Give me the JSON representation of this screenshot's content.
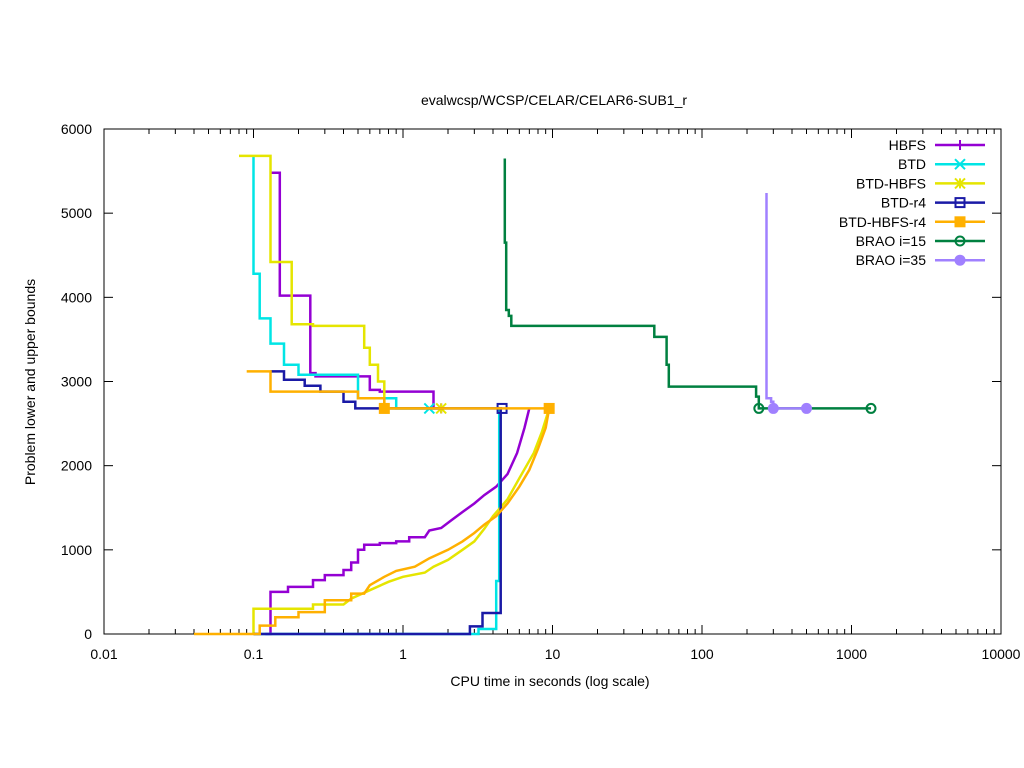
{
  "chart_data": {
    "type": "line",
    "title": "evalwcsp/WCSP/CELAR/CELAR6-SUB1_r",
    "xlabel": "CPU time in seconds (log scale)",
    "ylabel": "Problem lower and upper bounds",
    "xscale": "log",
    "xlim": [
      0.01,
      10000
    ],
    "ylim": [
      0,
      6000
    ],
    "x_ticks": [
      0.01,
      0.1,
      1,
      10,
      100,
      1000,
      10000
    ],
    "x_tick_labels": [
      "0.01",
      "0.1",
      "1",
      "10",
      "100",
      "1000",
      "10000"
    ],
    "y_ticks": [
      0,
      1000,
      2000,
      3000,
      4000,
      5000,
      6000
    ],
    "y_tick_labels": [
      "0",
      "1000",
      "2000",
      "3000",
      "4000",
      "5000",
      "6000"
    ],
    "grid": false,
    "legend_position": "top-right",
    "series": [
      {
        "name": "HBFS",
        "color": "#9400d3",
        "marker": "plus",
        "upper": [
          [
            0.13,
            5480
          ],
          [
            0.15,
            5480
          ],
          [
            0.15,
            4020
          ],
          [
            0.24,
            4020
          ],
          [
            0.24,
            3100
          ],
          [
            0.26,
            3100
          ],
          [
            0.26,
            3060
          ],
          [
            0.6,
            3060
          ],
          [
            0.6,
            2900
          ],
          [
            0.7,
            2900
          ],
          [
            0.7,
            2880
          ],
          [
            1.6,
            2880
          ],
          [
            1.6,
            2680
          ],
          [
            1.8,
            2680
          ]
        ],
        "lower": [
          [
            0.12,
            0
          ],
          [
            0.13,
            0
          ],
          [
            0.13,
            500
          ],
          [
            0.17,
            500
          ],
          [
            0.17,
            560
          ],
          [
            0.25,
            560
          ],
          [
            0.25,
            640
          ],
          [
            0.3,
            640
          ],
          [
            0.3,
            700
          ],
          [
            0.4,
            700
          ],
          [
            0.4,
            760
          ],
          [
            0.45,
            760
          ],
          [
            0.45,
            850
          ],
          [
            0.5,
            850
          ],
          [
            0.5,
            1000
          ],
          [
            0.55,
            1000
          ],
          [
            0.55,
            1060
          ],
          [
            0.7,
            1060
          ],
          [
            0.7,
            1080
          ],
          [
            0.9,
            1080
          ],
          [
            0.9,
            1100
          ],
          [
            1.1,
            1100
          ],
          [
            1.1,
            1150
          ],
          [
            1.4,
            1150
          ],
          [
            1.5,
            1230
          ],
          [
            1.8,
            1260
          ],
          [
            2.1,
            1350
          ],
          [
            2.5,
            1450
          ],
          [
            3,
            1550
          ],
          [
            3.5,
            1650
          ],
          [
            4.2,
            1750
          ],
          [
            5,
            1900
          ],
          [
            5.8,
            2150
          ],
          [
            6.5,
            2450
          ],
          [
            7,
            2680
          ]
        ],
        "markers": [
          [
            1.8,
            2680
          ]
        ]
      },
      {
        "name": "BTD",
        "color": "#00e5e5",
        "marker": "x",
        "upper": [
          [
            0.1,
            5680
          ],
          [
            0.1,
            4280
          ],
          [
            0.11,
            4280
          ],
          [
            0.11,
            3750
          ],
          [
            0.13,
            3750
          ],
          [
            0.13,
            3450
          ],
          [
            0.16,
            3450
          ],
          [
            0.16,
            3200
          ],
          [
            0.2,
            3200
          ],
          [
            0.2,
            3080
          ],
          [
            0.5,
            3080
          ],
          [
            0.5,
            2800
          ],
          [
            0.9,
            2800
          ],
          [
            0.9,
            2680
          ],
          [
            1.5,
            2680
          ]
        ],
        "lower": [
          [
            0.1,
            0
          ],
          [
            3.2,
            0
          ],
          [
            3.2,
            60
          ],
          [
            4.2,
            60
          ],
          [
            4.2,
            630
          ],
          [
            4.4,
            630
          ],
          [
            4.4,
            2680
          ]
        ],
        "markers": [
          [
            1.5,
            2680
          ]
        ]
      },
      {
        "name": "BTD-HBFS",
        "color": "#e5e500",
        "marker": "star",
        "upper": [
          [
            0.08,
            5680
          ],
          [
            0.13,
            5680
          ],
          [
            0.13,
            4420
          ],
          [
            0.18,
            4420
          ],
          [
            0.18,
            3680
          ],
          [
            0.25,
            3680
          ],
          [
            0.25,
            3660
          ],
          [
            0.55,
            3660
          ],
          [
            0.55,
            3400
          ],
          [
            0.6,
            3400
          ],
          [
            0.6,
            3200
          ],
          [
            0.68,
            3200
          ],
          [
            0.68,
            3000
          ],
          [
            0.75,
            3000
          ],
          [
            0.75,
            2680
          ],
          [
            1.8,
            2680
          ]
        ],
        "lower": [
          [
            0.1,
            0
          ],
          [
            0.1,
            300
          ],
          [
            0.25,
            300
          ],
          [
            0.25,
            350
          ],
          [
            0.4,
            350
          ],
          [
            0.45,
            420
          ],
          [
            0.6,
            520
          ],
          [
            0.8,
            620
          ],
          [
            1,
            680
          ],
          [
            1.4,
            730
          ],
          [
            1.6,
            800
          ],
          [
            2,
            880
          ],
          [
            2.5,
            1000
          ],
          [
            3,
            1100
          ],
          [
            3.5,
            1250
          ],
          [
            4,
            1400
          ],
          [
            5,
            1600
          ],
          [
            6,
            1850
          ],
          [
            7.5,
            2150
          ],
          [
            8.5,
            2400
          ],
          [
            9.5,
            2680
          ]
        ],
        "markers": [
          [
            1.8,
            2680
          ]
        ]
      },
      {
        "name": "BTD-r4",
        "color": "#1a1aa6",
        "marker": "square",
        "upper": [
          [
            0.13,
            3120
          ],
          [
            0.16,
            3120
          ],
          [
            0.16,
            3020
          ],
          [
            0.22,
            3020
          ],
          [
            0.22,
            2950
          ],
          [
            0.28,
            2950
          ],
          [
            0.28,
            2880
          ],
          [
            0.4,
            2880
          ],
          [
            0.4,
            2760
          ],
          [
            0.48,
            2760
          ],
          [
            0.48,
            2680
          ],
          [
            4.6,
            2680
          ]
        ],
        "lower": [
          [
            0.1,
            0
          ],
          [
            2.8,
            0
          ],
          [
            2.8,
            90
          ],
          [
            3.4,
            90
          ],
          [
            3.4,
            250
          ],
          [
            4.5,
            250
          ],
          [
            4.5,
            2680
          ],
          [
            4.6,
            2680
          ]
        ],
        "markers": [
          [
            4.6,
            2680
          ]
        ]
      },
      {
        "name": "BTD-HBFS-r4",
        "color": "#ffb000",
        "marker": "filled-square",
        "upper": [
          [
            0.09,
            3120
          ],
          [
            0.13,
            3120
          ],
          [
            0.13,
            2880
          ],
          [
            0.5,
            2880
          ],
          [
            0.5,
            2800
          ],
          [
            0.75,
            2800
          ],
          [
            0.75,
            2680
          ],
          [
            9.5,
            2680
          ]
        ],
        "lower": [
          [
            0.04,
            0
          ],
          [
            0.11,
            0
          ],
          [
            0.11,
            100
          ],
          [
            0.14,
            100
          ],
          [
            0.14,
            200
          ],
          [
            0.2,
            200
          ],
          [
            0.2,
            260
          ],
          [
            0.3,
            260
          ],
          [
            0.3,
            400
          ],
          [
            0.45,
            400
          ],
          [
            0.45,
            480
          ],
          [
            0.55,
            480
          ],
          [
            0.6,
            580
          ],
          [
            0.75,
            680
          ],
          [
            0.9,
            750
          ],
          [
            1.2,
            800
          ],
          [
            1.5,
            900
          ],
          [
            2,
            1000
          ],
          [
            2.5,
            1100
          ],
          [
            3,
            1200
          ],
          [
            3.5,
            1300
          ],
          [
            4.2,
            1400
          ],
          [
            5,
            1550
          ],
          [
            6,
            1750
          ],
          [
            7,
            1950
          ],
          [
            8,
            2200
          ],
          [
            9,
            2450
          ],
          [
            9.5,
            2680
          ]
        ],
        "markers": [
          [
            0.75,
            2680
          ],
          [
            9.5,
            2680
          ]
        ]
      },
      {
        "name": "BRAO i=15",
        "color": "#008040",
        "marker": "circle",
        "upper": [
          [
            4.8,
            5650
          ],
          [
            4.8,
            4650
          ],
          [
            4.9,
            4650
          ],
          [
            4.9,
            3850
          ],
          [
            5.1,
            3850
          ],
          [
            5.1,
            3780
          ],
          [
            5.3,
            3780
          ],
          [
            5.3,
            3660
          ],
          [
            48,
            3660
          ],
          [
            48,
            3530
          ],
          [
            58,
            3530
          ],
          [
            58,
            3200
          ],
          [
            60,
            3200
          ],
          [
            60,
            2940
          ],
          [
            230,
            2940
          ],
          [
            230,
            2820
          ],
          [
            240,
            2820
          ],
          [
            240,
            2680
          ],
          [
            1350,
            2680
          ]
        ],
        "lower": [],
        "markers": [
          [
            240,
            2680
          ],
          [
            1350,
            2680
          ]
        ]
      },
      {
        "name": "BRAO i=35",
        "color": "#a080ff",
        "marker": "filled-circle",
        "upper": [
          [
            270,
            5240
          ],
          [
            270,
            2800
          ],
          [
            290,
            2800
          ],
          [
            290,
            2760
          ],
          [
            300,
            2760
          ],
          [
            300,
            2680
          ],
          [
            500,
            2680
          ]
        ],
        "lower": [],
        "markers": [
          [
            300,
            2680
          ],
          [
            500,
            2680
          ]
        ]
      }
    ]
  }
}
